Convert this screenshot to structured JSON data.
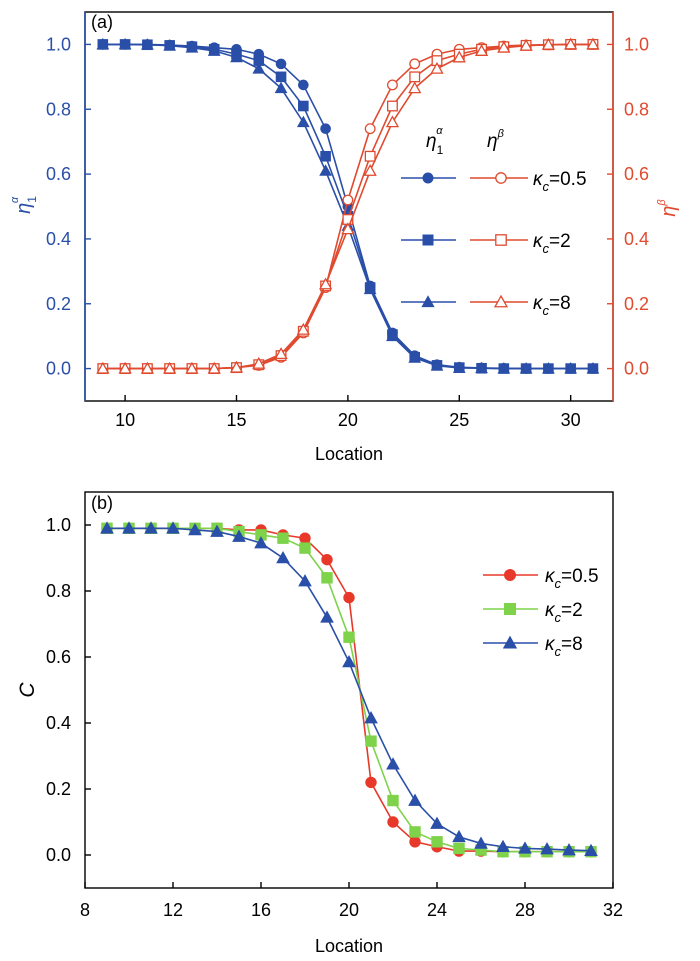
{
  "chart_data": [
    {
      "type": "line",
      "panel_label": "(a)",
      "xlabel": "Location",
      "ylabel_left": {
        "symbol": "η",
        "sub": "1",
        "sup": "α"
      },
      "ylabel_right": {
        "symbol": "η",
        "sup": "β"
      },
      "xlim": [
        8.2,
        31.9
      ],
      "xticks": [
        10,
        15,
        20,
        25,
        30
      ],
      "ylim": [
        -0.1,
        1.1
      ],
      "yticks": [
        "0.0",
        "0.2",
        "0.4",
        "0.6",
        "0.8",
        "1.0"
      ],
      "ytick_values": [
        0.0,
        0.2,
        0.4,
        0.6,
        0.8,
        1.0
      ],
      "colors": {
        "left": "#2a4fa8",
        "right": "#e04a2f"
      },
      "legend": {
        "placement": "center-right",
        "header_left": {
          "symbol": "η",
          "sub": "1",
          "sup": "α"
        },
        "header_right": {
          "symbol": "η",
          "sup": "β"
        },
        "entries": [
          {
            "symbol": "κ",
            "sub": "c",
            "text": "=0.5"
          },
          {
            "symbol": "κ",
            "sub": "c",
            "text": "=2"
          },
          {
            "symbol": "κ",
            "sub": "c",
            "text": "=8"
          }
        ]
      },
      "x": [
        9,
        10,
        11,
        12,
        13,
        14,
        15,
        16,
        17,
        18,
        19,
        20,
        21,
        22,
        23,
        24,
        25,
        26,
        27,
        28,
        29,
        30,
        31
      ],
      "series": [
        {
          "group": "eta1_alpha",
          "marker": "circle",
          "fill": "solid",
          "color": "#2a4fa8",
          "values": [
            1.0,
            1.0,
            1.0,
            0.998,
            0.995,
            0.99,
            0.985,
            0.97,
            0.94,
            0.875,
            0.74,
            0.5,
            0.255,
            0.11,
            0.04,
            0.012,
            0.004,
            0.002,
            0.001,
            0.0,
            0.0,
            0.0,
            0.0
          ]
        },
        {
          "group": "eta1_alpha",
          "marker": "square",
          "fill": "solid",
          "color": "#2a4fa8",
          "values": [
            1.0,
            1.0,
            0.999,
            0.997,
            0.993,
            0.985,
            0.97,
            0.95,
            0.9,
            0.81,
            0.655,
            0.47,
            0.25,
            0.105,
            0.035,
            0.01,
            0.003,
            0.001,
            0.0,
            0.0,
            0.0,
            0.0,
            0.0
          ]
        },
        {
          "group": "eta1_alpha",
          "marker": "triangle",
          "fill": "solid",
          "color": "#2a4fa8",
          "values": [
            1.0,
            1.0,
            0.999,
            0.996,
            0.99,
            0.98,
            0.96,
            0.925,
            0.865,
            0.76,
            0.61,
            0.44,
            0.245,
            0.1,
            0.033,
            0.009,
            0.002,
            0.001,
            0.0,
            0.0,
            0.0,
            0.0,
            0.0
          ]
        },
        {
          "group": "eta_beta",
          "marker": "circle",
          "fill": "open",
          "color": "#e04a2f",
          "values": [
            0.0,
            0.0,
            0.0,
            0.0,
            0.0,
            0.0,
            0.003,
            0.01,
            0.035,
            0.11,
            0.25,
            0.52,
            0.74,
            0.875,
            0.94,
            0.97,
            0.985,
            0.99,
            0.995,
            0.998,
            0.999,
            1.0,
            1.0
          ]
        },
        {
          "group": "eta_beta",
          "marker": "square",
          "fill": "open",
          "color": "#e04a2f",
          "values": [
            0.0,
            0.0,
            0.0,
            0.0,
            0.0,
            0.0,
            0.003,
            0.012,
            0.04,
            0.115,
            0.255,
            0.46,
            0.655,
            0.81,
            0.9,
            0.95,
            0.97,
            0.985,
            0.993,
            0.997,
            0.999,
            1.0,
            1.0
          ]
        },
        {
          "group": "eta_beta",
          "marker": "triangle",
          "fill": "open",
          "color": "#e04a2f",
          "values": [
            0.0,
            0.0,
            0.0,
            0.0,
            0.0,
            0.0,
            0.003,
            0.015,
            0.045,
            0.12,
            0.26,
            0.43,
            0.61,
            0.76,
            0.865,
            0.925,
            0.96,
            0.98,
            0.99,
            0.996,
            0.999,
            1.0,
            1.0
          ]
        }
      ]
    },
    {
      "type": "line",
      "panel_label": "(b)",
      "xlabel": "Location",
      "ylabel": "C",
      "xlim": [
        8,
        32
      ],
      "xticks": [
        8,
        12,
        16,
        20,
        24,
        28,
        32
      ],
      "ylim": [
        -0.1,
        1.1
      ],
      "yticks": [
        "0.0",
        "0.2",
        "0.4",
        "0.6",
        "0.8",
        "1.0"
      ],
      "ytick_values": [
        0.0,
        0.2,
        0.4,
        0.6,
        0.8,
        1.0
      ],
      "legend": {
        "placement": "top-right",
        "entries": [
          {
            "symbol": "κ",
            "sub": "c",
            "text": "=0.5"
          },
          {
            "symbol": "κ",
            "sub": "c",
            "text": "=2"
          },
          {
            "symbol": "κ",
            "sub": "c",
            "text": "=8"
          }
        ]
      },
      "x": [
        9,
        10,
        11,
        12,
        13,
        14,
        15,
        16,
        17,
        18,
        19,
        20,
        21,
        22,
        23,
        24,
        25,
        26,
        27,
        28,
        29,
        30,
        31
      ],
      "series": [
        {
          "marker": "circle",
          "color": "#e8382a",
          "values": [
            0.99,
            0.99,
            0.99,
            0.99,
            0.99,
            0.99,
            0.985,
            0.985,
            0.97,
            0.96,
            0.895,
            0.78,
            0.22,
            0.1,
            0.04,
            0.025,
            0.012,
            0.012,
            0.01,
            0.01,
            0.01,
            0.01,
            0.01
          ]
        },
        {
          "marker": "square",
          "color": "#7ed34a",
          "values": [
            0.99,
            0.99,
            0.99,
            0.99,
            0.99,
            0.99,
            0.98,
            0.97,
            0.96,
            0.93,
            0.84,
            0.66,
            0.345,
            0.165,
            0.07,
            0.04,
            0.02,
            0.015,
            0.01,
            0.01,
            0.01,
            0.01,
            0.01
          ]
        },
        {
          "marker": "triangle",
          "color": "#2a4fa8",
          "values": [
            0.99,
            0.99,
            0.99,
            0.99,
            0.985,
            0.98,
            0.965,
            0.945,
            0.9,
            0.83,
            0.72,
            0.585,
            0.415,
            0.275,
            0.165,
            0.095,
            0.055,
            0.035,
            0.025,
            0.02,
            0.018,
            0.015,
            0.013
          ]
        }
      ]
    }
  ]
}
